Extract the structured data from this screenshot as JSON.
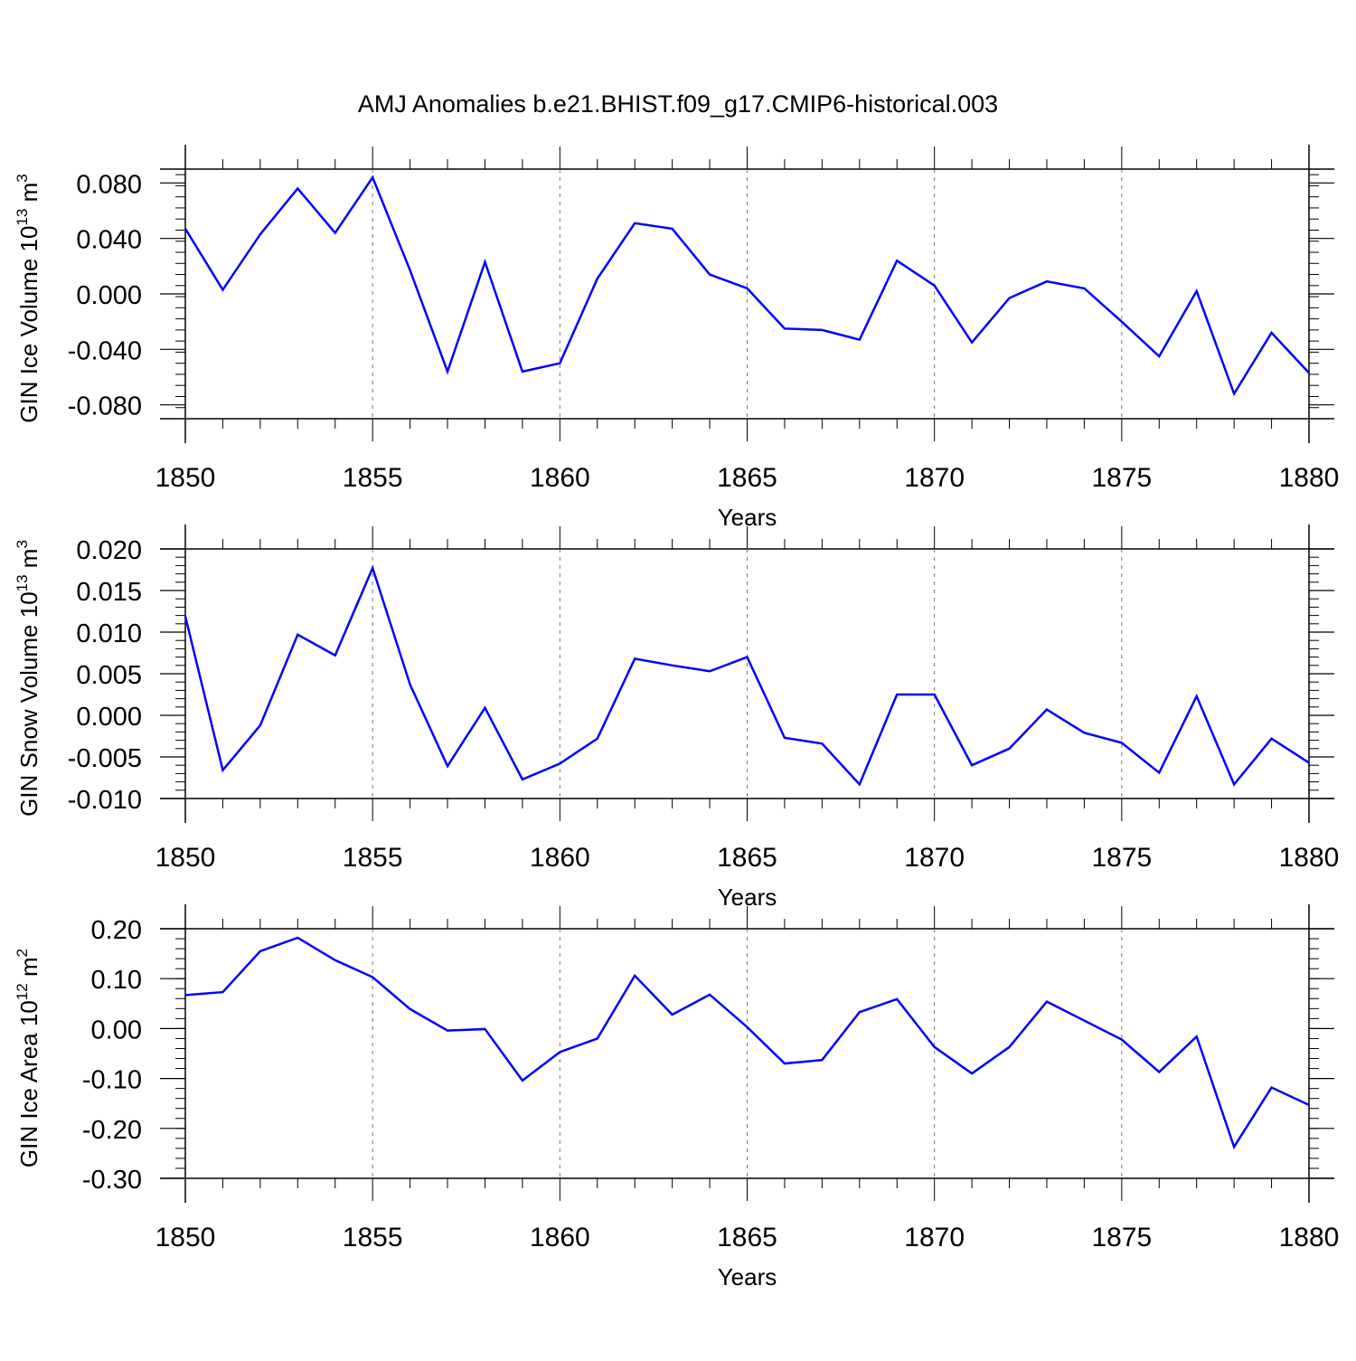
{
  "title": "AMJ Anomalies b.e21.BHIST.f09_g17.CMIP6-historical.003",
  "chart_data": [
    {
      "type": "line",
      "ylabel": "GIN Ice Volume 10",
      "ylabel_exp": "13",
      "ylabel_unit": " m",
      "ylabel_unit_exp": "3",
      "xlabel": "Years",
      "xlim": [
        1850,
        1880
      ],
      "ylim": [
        -0.09,
        0.09
      ],
      "yticks": [
        -0.08,
        -0.04,
        0.0,
        0.04,
        0.08
      ],
      "ytick_labels": [
        "-0.080",
        "-0.040",
        "0.000",
        "0.040",
        "0.080"
      ],
      "xticks": [
        1850,
        1855,
        1860,
        1865,
        1870,
        1875,
        1880
      ],
      "xtick_labels": [
        "1850",
        "1855",
        "1860",
        "1865",
        "1870",
        "1875",
        "1880"
      ],
      "line_color": "#0000ff",
      "grid": "dashed vertical at major x ticks",
      "series": [
        {
          "x": [
            1850,
            1851,
            1852,
            1853,
            1854,
            1855,
            1856,
            1857,
            1858,
            1859,
            1860,
            1861,
            1862,
            1863,
            1864,
            1865,
            1866,
            1867,
            1868,
            1869,
            1870,
            1871,
            1872,
            1873,
            1874,
            1875,
            1876,
            1877,
            1878,
            1879,
            1880
          ],
          "values": [
            0.047,
            0.003,
            0.043,
            0.076,
            0.044,
            0.084,
            0.017,
            -0.056,
            0.023,
            -0.056,
            -0.05,
            0.011,
            0.051,
            0.047,
            0.014,
            0.004,
            -0.025,
            -0.026,
            -0.033,
            0.024,
            0.006,
            -0.035,
            -0.003,
            0.009,
            0.004,
            -0.02,
            -0.045,
            0.002,
            -0.072,
            -0.028,
            -0.057
          ]
        }
      ]
    },
    {
      "type": "line",
      "ylabel": "GIN Snow Volume 10",
      "ylabel_exp": "13",
      "ylabel_unit": " m",
      "ylabel_unit_exp": "3",
      "xlabel": "Years",
      "xlim": [
        1850,
        1880
      ],
      "ylim": [
        -0.01,
        0.02
      ],
      "yticks": [
        -0.01,
        -0.005,
        0.0,
        0.005,
        0.01,
        0.015,
        0.02
      ],
      "ytick_labels": [
        "-0.010",
        "-0.005",
        "0.000",
        "0.005",
        "0.010",
        "0.015",
        "0.020"
      ],
      "xticks": [
        1850,
        1855,
        1860,
        1865,
        1870,
        1875,
        1880
      ],
      "xtick_labels": [
        "1850",
        "1855",
        "1860",
        "1865",
        "1870",
        "1875",
        "1880"
      ],
      "line_color": "#0000ff",
      "grid": "dashed vertical at major x ticks",
      "series": [
        {
          "x": [
            1850,
            1851,
            1852,
            1853,
            1854,
            1855,
            1856,
            1857,
            1858,
            1859,
            1860,
            1861,
            1862,
            1863,
            1864,
            1865,
            1866,
            1867,
            1868,
            1869,
            1870,
            1871,
            1872,
            1873,
            1874,
            1875,
            1876,
            1877,
            1878,
            1879,
            1880
          ],
          "values": [
            0.0119,
            -0.0066,
            -0.0012,
            0.0097,
            0.0072,
            0.0177,
            0.0037,
            -0.0061,
            0.0009,
            -0.0077,
            -0.0058,
            -0.0028,
            0.0068,
            0.006,
            0.0053,
            0.007,
            -0.0027,
            -0.0034,
            -0.0083,
            0.0025,
            0.0025,
            -0.006,
            -0.004,
            0.0007,
            -0.0021,
            -0.0033,
            -0.0069,
            0.0023,
            -0.0083,
            -0.0028,
            -0.0057
          ]
        }
      ]
    },
    {
      "type": "line",
      "ylabel": "GIN Ice Area 10",
      "ylabel_exp": "12",
      "ylabel_unit": " m",
      "ylabel_unit_exp": "2",
      "xlabel": "Years",
      "xlim": [
        1850,
        1880
      ],
      "ylim": [
        -0.3,
        0.2
      ],
      "yticks": [
        -0.3,
        -0.2,
        -0.1,
        0.0,
        0.1,
        0.2
      ],
      "ytick_labels": [
        "-0.30",
        "-0.20",
        "-0.10",
        "0.00",
        "0.10",
        "0.20"
      ],
      "xticks": [
        1850,
        1855,
        1860,
        1865,
        1870,
        1875,
        1880
      ],
      "xtick_labels": [
        "1850",
        "1855",
        "1860",
        "1865",
        "1870",
        "1875",
        "1880"
      ],
      "line_color": "#0000ff",
      "grid": "dashed vertical at major x ticks",
      "series": [
        {
          "x": [
            1850,
            1851,
            1852,
            1853,
            1854,
            1855,
            1856,
            1857,
            1858,
            1859,
            1860,
            1861,
            1862,
            1863,
            1864,
            1865,
            1866,
            1867,
            1868,
            1869,
            1870,
            1871,
            1872,
            1873,
            1874,
            1875,
            1876,
            1877,
            1878,
            1879,
            1880
          ],
          "values": [
            0.067,
            0.073,
            0.155,
            0.182,
            0.137,
            0.103,
            0.039,
            -0.004,
            -0.001,
            -0.104,
            -0.047,
            -0.02,
            0.106,
            0.028,
            0.068,
            0.003,
            -0.07,
            -0.063,
            0.033,
            0.059,
            -0.037,
            -0.09,
            -0.037,
            0.054,
            0.016,
            -0.022,
            -0.087,
            -0.016,
            -0.237,
            -0.118,
            -0.153
          ]
        }
      ]
    }
  ]
}
